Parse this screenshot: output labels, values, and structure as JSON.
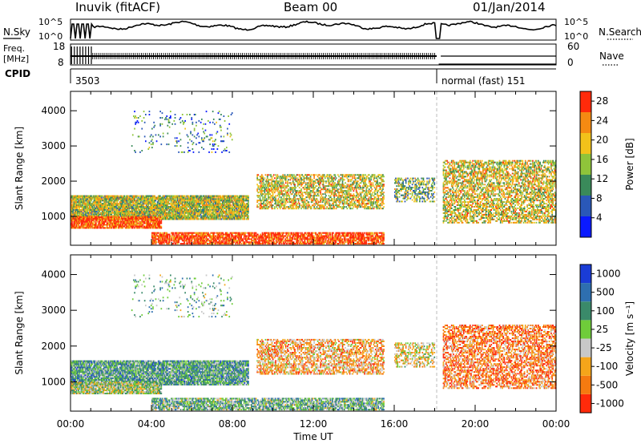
{
  "header": {
    "station": "Inuvik (fitACF)",
    "beam": "Beam 00",
    "date": "01/Jan/2014"
  },
  "status_panels": {
    "nsky_label": "N.Sky",
    "nsearch_label": "N.Search",
    "noise_ticks": [
      "10^5",
      "10^0"
    ],
    "freq_label_1": "Freq.",
    "freq_label_2": "[MHz]",
    "freq_ticks": [
      "18",
      "8"
    ],
    "nave_label": "Nave",
    "nave_ticks": [
      "60",
      "0"
    ],
    "cpid_label": "CPID",
    "cpid_segments": [
      {
        "label": "3503",
        "start_hour": 0,
        "end_hour": 18.1
      },
      {
        "label": "normal (fast) 151",
        "start_hour": 18.1,
        "end_hour": 24
      }
    ]
  },
  "chart_data": [
    {
      "type": "heatmap",
      "name": "power",
      "ylabel": "Slant Range [km]",
      "xlabel": "",
      "x_ticks": [
        "00:00",
        "04:00",
        "08:00",
        "12:00",
        "16:00",
        "20:00",
        "00:00"
      ],
      "xlim_hours": [
        0,
        24
      ],
      "y_ticks": [
        1000,
        2000,
        3000,
        4000
      ],
      "ylim": [
        180,
        4550
      ],
      "colorbar": {
        "label": "Power [dB]",
        "ticks": [
          "4",
          "8",
          "12",
          "16",
          "20",
          "24",
          "28"
        ],
        "range": [
          0,
          30
        ],
        "colors": [
          "#0a1aff",
          "#2a58b8",
          "#3a8a5a",
          "#8fc43a",
          "#f2c21a",
          "#f58a12",
          "#ff2a0a"
        ]
      }
    },
    {
      "type": "heatmap",
      "name": "velocity",
      "ylabel": "Slant Range [km]",
      "xlabel": "Time UT",
      "x_ticks": [
        "00:00",
        "04:00",
        "08:00",
        "12:00",
        "16:00",
        "20:00",
        "00:00"
      ],
      "xlim_hours": [
        0,
        24
      ],
      "y_ticks": [
        1000,
        2000,
        3000,
        4000
      ],
      "ylim": [
        180,
        4550
      ],
      "colorbar": {
        "label": "Velocity [m s⁻¹]",
        "ticks": [
          "1000",
          "500",
          "100",
          "25",
          "-25",
          "-100",
          "-500",
          "-1000"
        ],
        "colors": [
          "#1a3cd6",
          "#2e6fb0",
          "#3a8a6a",
          "#6fcc3a",
          "#c8c8c8",
          "#f5a51a",
          "#f57a10",
          "#ff2a0a"
        ]
      }
    }
  ]
}
